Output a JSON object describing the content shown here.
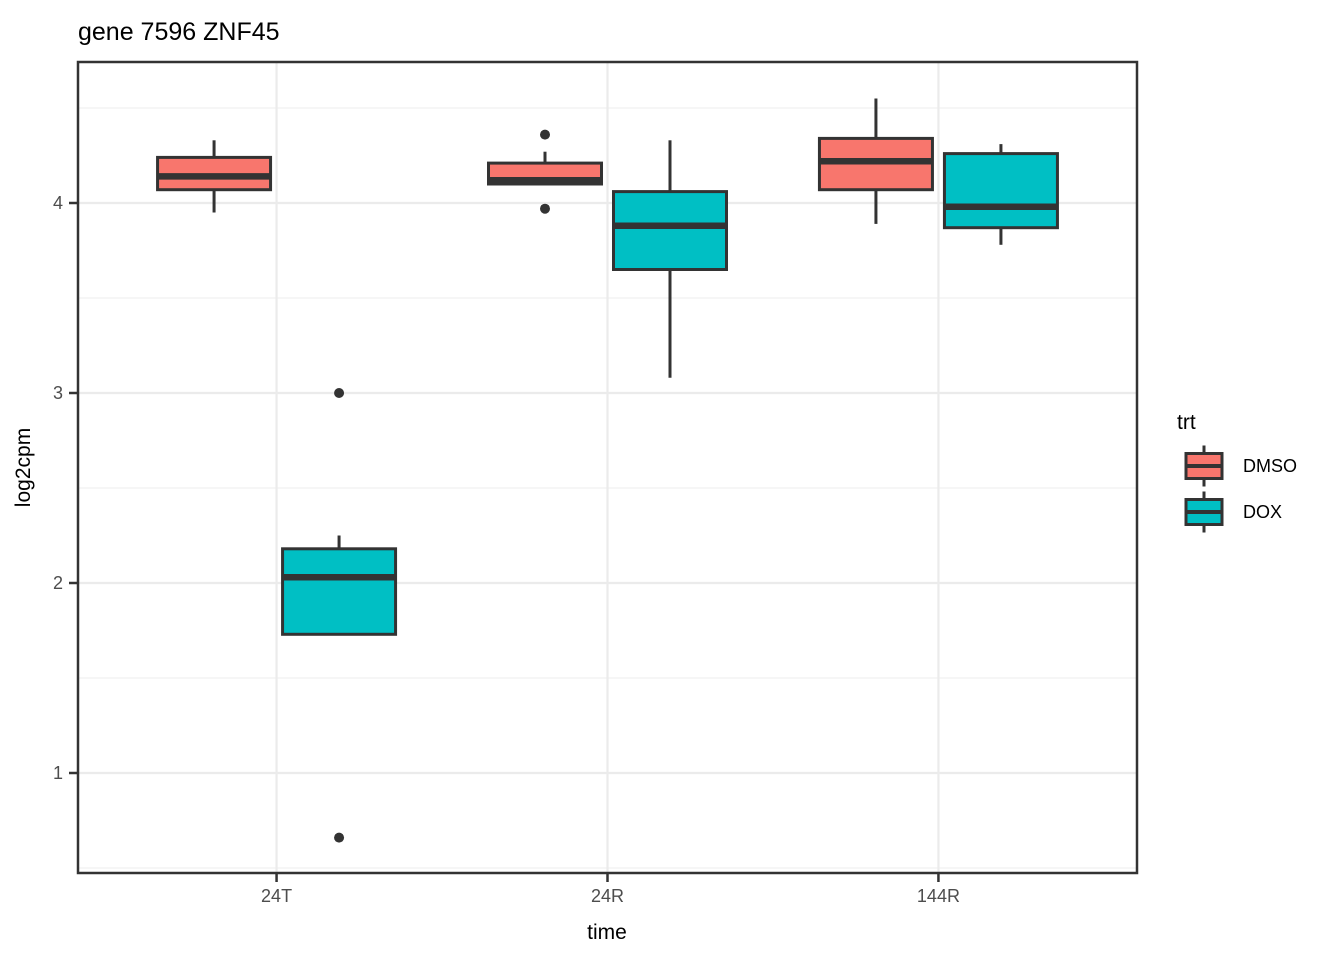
{
  "title": "gene 7596 ZNF45",
  "axes": {
    "x_label": "time",
    "y_label": "log2cpm",
    "x_tick_labels": [
      "24T",
      "24R",
      "144R"
    ],
    "y_tick_labels": [
      "1",
      "2",
      "3",
      "4"
    ]
  },
  "legend": {
    "title": "trt",
    "entries": [
      {
        "label": "DMSO",
        "color": "#F8766D"
      },
      {
        "label": "DOX",
        "color": "#00BFC4"
      }
    ]
  },
  "colors": {
    "dmso_fill": "#F8766D",
    "dox_fill": "#00BFC4",
    "box_stroke": "#333333",
    "outlier": "#333333",
    "panel_border": "#333333",
    "grid_major": "#ebebeb",
    "grid_minor": "#f3f3f3",
    "tick_mark": "#333333",
    "tick_label": "#4d4d4d",
    "text": "#000000",
    "background": "#ffffff"
  },
  "chart_data": {
    "type": "boxplot",
    "title": "gene 7596 ZNF45",
    "xlabel": "time",
    "ylabel": "log2cpm",
    "categories": [
      "24T",
      "24R",
      "144R"
    ],
    "ylim": [
      0.47,
      4.75
    ],
    "y_major_ticks": [
      1,
      2,
      3,
      4
    ],
    "y_minor_ticks": [
      0.5,
      1.5,
      2.5,
      3.5,
      4.5
    ],
    "grid": "major-and-minor-horizontal, major-vertical-at-categories",
    "legend_title": "trt",
    "legend_position": "right",
    "series": [
      {
        "name": "DMSO",
        "color": "#F8766D",
        "boxes": [
          {
            "category": "24T",
            "whisker_low": 3.95,
            "q1": 4.07,
            "median": 4.14,
            "q3": 4.24,
            "whisker_high": 4.33,
            "outliers": []
          },
          {
            "category": "24R",
            "whisker_low": 4.1,
            "q1": 4.1,
            "median": 4.12,
            "q3": 4.21,
            "whisker_high": 4.27,
            "outliers": [
              4.36,
              3.97
            ]
          },
          {
            "category": "144R",
            "whisker_low": 3.89,
            "q1": 4.07,
            "median": 4.22,
            "q3": 4.34,
            "whisker_high": 4.55,
            "outliers": []
          }
        ]
      },
      {
        "name": "DOX",
        "color": "#00BFC4",
        "boxes": [
          {
            "category": "24T",
            "whisker_low": 1.73,
            "q1": 1.73,
            "median": 2.03,
            "q3": 2.18,
            "whisker_high": 2.25,
            "outliers": [
              3.0,
              0.66
            ]
          },
          {
            "category": "24R",
            "whisker_low": 3.08,
            "q1": 3.65,
            "median": 3.88,
            "q3": 4.06,
            "whisker_high": 4.33,
            "outliers": []
          },
          {
            "category": "144R",
            "whisker_low": 3.78,
            "q1": 3.87,
            "median": 3.98,
            "q3": 4.26,
            "whisker_high": 4.31,
            "outliers": []
          }
        ]
      }
    ]
  }
}
